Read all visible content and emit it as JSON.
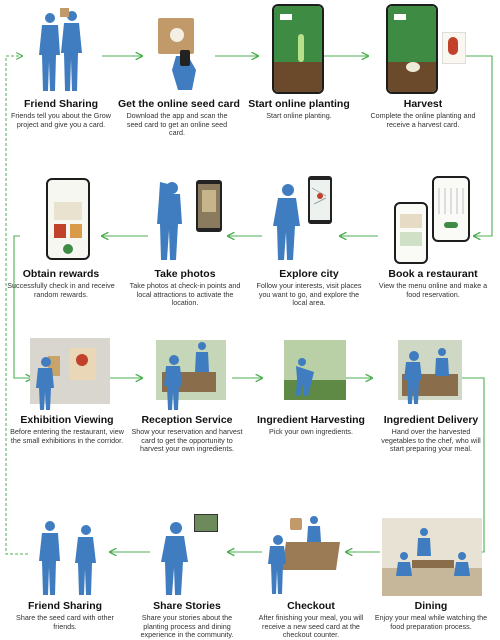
{
  "colors": {
    "figure": "#3f7cc0",
    "arrow": "#4caf50",
    "phone_green": "#3e8b43",
    "card": "#c29a6a"
  },
  "steps": [
    {
      "title": "Friend Sharing",
      "desc": "Friends tell you about the Grow project and give you a card.",
      "icon": "two-people-card"
    },
    {
      "title": "Get the online seed card",
      "desc": "Download the app and scan the seed card to get an online seed card.",
      "icon": "hand-scan-card"
    },
    {
      "title": "Start online planting",
      "desc": "Start online planting.",
      "icon": "phone-planting"
    },
    {
      "title": "Harvest",
      "desc": "Complete the online planting and receive a harvest card.",
      "icon": "phone-harvest"
    },
    {
      "title": "Obtain rewards",
      "desc": "Successfully check in and receive random rewards.",
      "icon": "phone-rewards"
    },
    {
      "title": "Take photos",
      "desc": "Take photos at check-in points and local attractions to activate the location.",
      "icon": "person-photo"
    },
    {
      "title": "Explore city",
      "desc": "Follow your interests, visit places you want to go, and explore the local area.",
      "icon": "person-map"
    },
    {
      "title": "Book a restaurant",
      "desc": "View the menu online and make a food reservation.",
      "icon": "phones-booking"
    },
    {
      "title": "Exhibition Viewing",
      "desc": "Before entering the restaurant, view the small exhibitions in the corridor.",
      "icon": "exhibition"
    },
    {
      "title": "Reception Service",
      "desc": "Show your reservation and harvest card to get the opportunity to harvest your own ingredients.",
      "icon": "reception"
    },
    {
      "title": "Ingredient Harvesting",
      "desc": "Pick your own ingredients.",
      "icon": "harvesting"
    },
    {
      "title": "Ingredient Delivery",
      "desc": "Hand over the harvested vegetables to the chef, who will start preparing your meal.",
      "icon": "delivery"
    },
    {
      "title": "Friend Sharing",
      "desc": "Share the seed card with other friends.",
      "icon": "two-people"
    },
    {
      "title": "Share Stories",
      "desc": "Share your stories about the planting process and dining experience in the community.",
      "icon": "person-phone"
    },
    {
      "title": "Checkout",
      "desc": "After finishing your meal, you will receive a new seed card at the checkout counter.",
      "icon": "checkout"
    },
    {
      "title": "Dining",
      "desc": "Enjoy your meal while watching the food preparation process.",
      "icon": "dining"
    }
  ]
}
